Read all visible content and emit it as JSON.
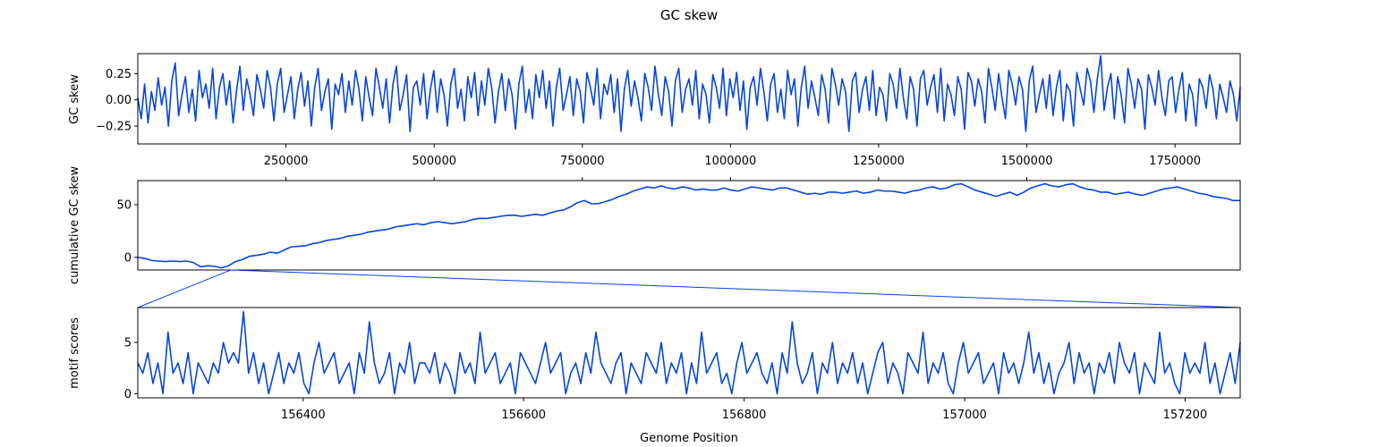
{
  "figure": {
    "title": "GC skew",
    "xlabel": "Genome Position"
  },
  "colors": {
    "line": "#0645e0",
    "axis": "#000000"
  },
  "chart_data": [
    {
      "type": "line",
      "ylabel": "GC skew",
      "xlim": [
        1,
        1860000
      ],
      "ylim": [
        -0.42,
        0.44
      ],
      "xticks": [
        250000,
        500000,
        750000,
        1000000,
        1250000,
        1500000,
        1750000
      ],
      "xtick_labels": [
        "250000",
        "500000",
        "750000",
        "1000000",
        "1250000",
        "1500000",
        "1750000"
      ],
      "yticks": [
        -0.25,
        0.0,
        0.25
      ],
      "ytick_labels": [
        "−0.25",
        "0.00",
        "0.25"
      ],
      "series": [
        {
          "x_start": 1,
          "x_end": 1860000,
          "values": [
            0.02,
            -0.18,
            0.15,
            -0.22,
            0.08,
            -0.1,
            0.21,
            -0.05,
            0.12,
            -0.25,
            0.18,
            0.35,
            -0.15,
            0.05,
            0.22,
            -0.12,
            0.1,
            -0.2,
            0.28,
            0.02,
            0.15,
            -0.08,
            0.3,
            -0.18,
            0.12,
            0.25,
            -0.05,
            0.18,
            -0.22,
            0.08,
            0.32,
            -0.1,
            0.2,
            0.05,
            -0.15,
            0.24,
            0.1,
            -0.08,
            0.28,
            0.12,
            -0.2,
            0.15,
            0.3,
            -0.12,
            0.05,
            0.22,
            -0.18,
            0.1,
            0.26,
            -0.06,
            0.18,
            -0.25,
            0.12,
            0.3,
            -0.1,
            0.08,
            0.2,
            -0.28,
            0.15,
            0.05,
            0.25,
            -0.12,
            0.18,
            -0.05,
            0.28,
            0.1,
            -0.2,
            0.22,
            0.02,
            -0.15,
            0.3,
            0.12,
            -0.08,
            0.2,
            -0.22,
            0.15,
            0.32,
            -0.1,
            0.05,
            0.24,
            -0.3,
            0.12,
            0.18,
            -0.05,
            0.25,
            -0.18,
            0.1,
            0.28,
            -0.12,
            0.2,
            0.05,
            -0.25,
            0.15,
            0.3,
            -0.08,
            0.1,
            -0.2,
            0.22,
            0.02,
            0.26,
            -0.15,
            0.18,
            -0.05,
            0.3,
            0.12,
            -0.22,
            0.08,
            0.25,
            -0.1,
            0.2,
            0.05,
            -0.28,
            0.15,
            0.32,
            -0.12,
            0.1,
            -0.18,
            0.24,
            0.02,
            0.28,
            -0.08,
            0.18,
            -0.25,
            0.12,
            0.3,
            -0.1,
            0.05,
            0.22,
            -0.15,
            0.2,
            0.08,
            -0.22,
            0.26,
            0.12,
            -0.05,
            0.3,
            -0.18,
            0.15,
            0.05,
            0.24,
            -0.12,
            0.2,
            -0.3,
            0.1,
            0.28,
            -0.06,
            0.18,
            0.02,
            -0.2,
            0.25,
            0.12,
            -0.1,
            0.32,
            0.05,
            -0.15,
            0.22,
            0.08,
            -0.25,
            0.18,
            0.3,
            -0.12,
            0.1,
            0.2,
            -0.05,
            0.28,
            -0.18,
            0.15,
            0.05,
            -0.22,
            0.24,
            0.12,
            -0.08,
            0.3,
            -0.15,
            0.2,
            0.02,
            0.26,
            -0.1,
            0.18,
            -0.28,
            0.12,
            0.22,
            -0.05,
            0.3,
            0.08,
            -0.2,
            0.15,
            0.25,
            -0.12,
            0.1,
            -0.18,
            0.28,
            0.05,
            0.2,
            -0.25,
            0.12,
            0.32,
            -0.08,
            0.18,
            0.02,
            -0.15,
            0.24,
            0.1,
            -0.22,
            0.3,
            0.15,
            -0.05,
            0.2,
            0.08,
            -0.3,
            0.18,
            0.26,
            -0.12,
            0.1,
            0.22,
            -0.1,
            0.28,
            -0.15,
            0.12,
            0.05,
            -0.2,
            0.25,
            0.15,
            -0.08,
            0.3,
            0.02,
            -0.18,
            0.22,
            0.1,
            -0.25,
            0.2,
            0.28,
            -0.05,
            0.12,
            0.24,
            -0.12,
            0.3,
            -0.2,
            0.15,
            0.05,
            -0.15,
            0.22,
            0.1,
            -0.28,
            0.26,
            0.18,
            -0.06,
            0.2,
            0.08,
            -0.22,
            0.3,
            0.12,
            -0.1,
            0.25,
            0.02,
            -0.18,
            0.28,
            0.15,
            -0.05,
            0.22,
            0.1,
            -0.3,
            0.18,
            0.32,
            -0.12,
            0.05,
            0.2,
            -0.08,
            0.24,
            -0.15,
            0.12,
            0.28,
            -0.2,
            0.15,
            0.08,
            -0.25,
            0.26,
            0.1,
            -0.05,
            0.3,
            0.18,
            -0.12,
            0.2,
            0.42,
            -0.1,
            0.12,
            0.25,
            -0.18,
            0.22,
            0.05,
            -0.22,
            0.3,
            0.15,
            -0.08,
            0.2,
            0.1,
            -0.28,
            0.24,
            0.12,
            -0.05,
            0.28,
            0.02,
            -0.15,
            0.18,
            0.22,
            -0.12,
            0.1,
            0.26,
            -0.2,
            0.15,
            0.05,
            -0.25,
            0.2,
            0.12,
            -0.08,
            0.24,
            0.1,
            -0.18,
            0.15,
            0.02,
            -0.12,
            0.18,
            0.05,
            -0.2,
            0.12
          ]
        }
      ]
    },
    {
      "type": "line",
      "ylabel": "cumulative GC skew",
      "xlim": [
        1,
        1860000
      ],
      "ylim": [
        -12,
        73
      ],
      "yticks": [
        0,
        50
      ],
      "ytick_labels": [
        "0",
        "50"
      ],
      "series": [
        {
          "x_start": 1,
          "x_end": 1860000,
          "values": [
            0,
            -1,
            -3,
            -3.5,
            -4,
            -3.5,
            -4,
            -3.5,
            -5,
            -9,
            -8,
            -8.5,
            -10,
            -8,
            -4,
            -2,
            1,
            2,
            3,
            5,
            4,
            7,
            10,
            10.5,
            11,
            13,
            14,
            16,
            17,
            18,
            20,
            21,
            22,
            24,
            25,
            26,
            27,
            29,
            30,
            31,
            32,
            31,
            33,
            34,
            33,
            32,
            33,
            34,
            36,
            37,
            37,
            38,
            39,
            40,
            40,
            39,
            40,
            41,
            40,
            42,
            44,
            45,
            48,
            52,
            54,
            51,
            51,
            53,
            55,
            58,
            60,
            63,
            65,
            67,
            66,
            68,
            66,
            65,
            67,
            66,
            64,
            65,
            64,
            64,
            66,
            64,
            63,
            65,
            67,
            66,
            65,
            64,
            66,
            66,
            64,
            62,
            60,
            61,
            60,
            62,
            62,
            61,
            62,
            63,
            61,
            62,
            64,
            63,
            63,
            62,
            61,
            63,
            64,
            66,
            67,
            65,
            66,
            69,
            70,
            67,
            64,
            62,
            60,
            58,
            60,
            62,
            59,
            62,
            66,
            68,
            70,
            68,
            67,
            69,
            70,
            67,
            65,
            64,
            62,
            62,
            60,
            61,
            62,
            60,
            59,
            61,
            63,
            65,
            66,
            67,
            65,
            63,
            61,
            60,
            58,
            57,
            56,
            54,
            54
          ]
        }
      ]
    },
    {
      "type": "line",
      "ylabel": "motif scores",
      "xlim": [
        156250,
        157250
      ],
      "ylim": [
        -0.4,
        8.4
      ],
      "xticks": [
        156400,
        156600,
        156800,
        157000,
        157200
      ],
      "xtick_labels": [
        "156400",
        "156600",
        "156800",
        "157000",
        "157200"
      ],
      "yticks": [
        0,
        5
      ],
      "ytick_labels": [
        "0",
        "5"
      ],
      "series": [
        {
          "x_start": 156250,
          "x_end": 157250,
          "values": [
            3,
            2,
            4,
            1,
            3,
            0,
            6,
            2,
            3,
            1,
            4,
            0,
            3,
            2,
            1,
            3,
            2,
            5,
            3,
            4,
            3,
            8,
            2,
            4,
            1,
            3,
            0,
            2,
            4,
            1,
            3,
            2,
            4,
            1,
            0,
            3,
            5,
            2,
            3,
            4,
            1,
            2,
            3,
            0,
            4,
            2,
            7,
            3,
            1,
            2,
            4,
            0,
            3,
            2,
            5,
            1,
            3,
            3,
            2,
            4,
            1,
            3,
            2,
            0,
            4,
            2,
            3,
            1,
            6,
            2,
            3,
            4,
            1,
            2,
            3,
            0,
            4,
            3,
            2,
            1,
            3,
            5,
            2,
            3,
            4,
            0,
            2,
            3,
            1,
            4,
            2,
            6,
            3,
            2,
            1,
            3,
            4,
            0,
            3,
            2,
            1,
            4,
            3,
            2,
            5,
            1,
            3,
            2,
            4,
            0,
            3,
            1,
            6,
            2,
            3,
            4,
            1,
            2,
            0,
            3,
            5,
            2,
            3,
            4,
            2,
            1,
            3,
            0,
            4,
            2,
            7,
            3,
            1,
            2,
            4,
            0,
            3,
            2,
            5,
            1,
            3,
            2,
            4,
            1,
            3,
            0,
            2,
            4,
            5,
            1,
            3,
            2,
            0,
            4,
            3,
            2,
            6,
            1,
            3,
            2,
            4,
            1,
            0,
            3,
            5,
            2,
            3,
            4,
            1,
            2,
            3,
            0,
            4,
            2,
            3,
            1,
            3,
            6,
            2,
            4,
            1,
            3,
            0,
            2,
            3,
            5,
            1,
            4,
            2,
            3,
            0,
            3,
            2,
            4,
            1,
            5,
            3,
            2,
            4,
            0,
            3,
            2,
            1,
            6,
            2,
            3,
            1,
            0,
            4,
            2,
            3,
            2,
            5,
            1,
            3,
            0,
            2,
            4,
            1,
            5
          ]
        }
      ]
    }
  ]
}
